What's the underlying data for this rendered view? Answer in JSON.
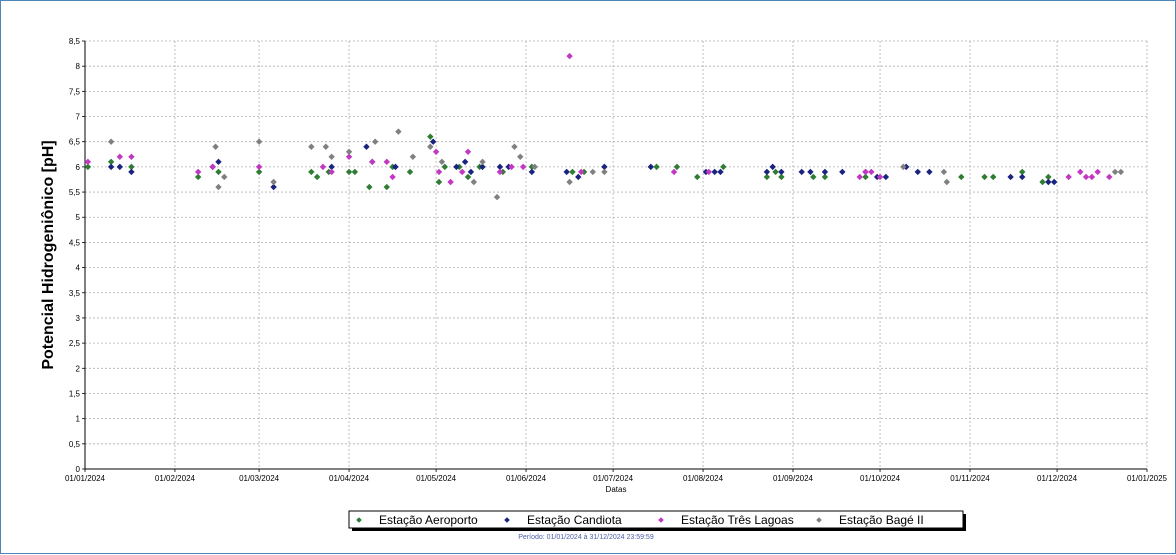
{
  "chart_data": {
    "type": "scatter",
    "ylabel": "Potencial Hidrogeniônico [pH]",
    "xlabel": "Datas",
    "period": "Período: 01/01/2024 à 31/12/2024 23:59:59",
    "ylim": [
      0,
      8.5
    ],
    "yticks": [
      "0",
      "0,5",
      "1",
      "1,5",
      "2",
      "2,5",
      "3",
      "3,5",
      "4",
      "4,5",
      "5",
      "5,5",
      "6",
      "6,5",
      "7",
      "7,5",
      "8",
      "8,5"
    ],
    "xlim": [
      "2024-01-01",
      "2025-01-01"
    ],
    "xticks": [
      "01/01/2024",
      "01/02/2024",
      "01/03/2024",
      "01/04/2024",
      "01/05/2024",
      "01/06/2024",
      "01/07/2024",
      "01/08/2024",
      "01/09/2024",
      "01/10/2024",
      "01/11/2024",
      "01/12/2024",
      "01/01/2025"
    ],
    "grid": true,
    "legend_position": "bottom",
    "series": [
      {
        "name": "Estação Aeroporto",
        "color": "#2e7d32",
        "points": [
          [
            "2024-01-02",
            6.0
          ],
          [
            "2024-01-10",
            6.1
          ],
          [
            "2024-01-17",
            6.0
          ],
          [
            "2024-02-09",
            5.8
          ],
          [
            "2024-02-16",
            5.9
          ],
          [
            "2024-03-01",
            5.9
          ],
          [
            "2024-03-19",
            5.9
          ],
          [
            "2024-03-21",
            5.8
          ],
          [
            "2024-03-25",
            5.9
          ],
          [
            "2024-04-01",
            5.9
          ],
          [
            "2024-04-03",
            5.9
          ],
          [
            "2024-04-08",
            5.6
          ],
          [
            "2024-04-14",
            5.6
          ],
          [
            "2024-04-16",
            6.0
          ],
          [
            "2024-04-22",
            5.9
          ],
          [
            "2024-04-29",
            6.6
          ],
          [
            "2024-05-02",
            5.7
          ],
          [
            "2024-05-04",
            6.0
          ],
          [
            "2024-05-09",
            6.0
          ],
          [
            "2024-05-12",
            5.8
          ],
          [
            "2024-05-16",
            6.0
          ],
          [
            "2024-05-24",
            5.9
          ],
          [
            "2024-06-03",
            6.0
          ],
          [
            "2024-06-17",
            5.9
          ],
          [
            "2024-06-21",
            5.9
          ],
          [
            "2024-07-16",
            6.0
          ],
          [
            "2024-07-23",
            6.0
          ],
          [
            "2024-07-30",
            5.8
          ],
          [
            "2024-08-08",
            6.0
          ],
          [
            "2024-08-23",
            5.8
          ],
          [
            "2024-08-26",
            5.9
          ],
          [
            "2024-08-28",
            5.8
          ],
          [
            "2024-09-08",
            5.8
          ],
          [
            "2024-09-12",
            5.8
          ],
          [
            "2024-09-26",
            5.8
          ],
          [
            "2024-10-29",
            5.8
          ],
          [
            "2024-11-06",
            5.8
          ],
          [
            "2024-11-09",
            5.8
          ],
          [
            "2024-11-19",
            5.9
          ],
          [
            "2024-11-26",
            5.7
          ],
          [
            "2024-11-28",
            5.8
          ]
        ]
      },
      {
        "name": "Estação Candiota",
        "color": "#1a237e",
        "points": [
          [
            "2024-01-10",
            6.0
          ],
          [
            "2024-01-13",
            6.0
          ],
          [
            "2024-01-17",
            5.9
          ],
          [
            "2024-02-14",
            6.0
          ],
          [
            "2024-02-16",
            6.1
          ],
          [
            "2024-03-06",
            5.6
          ],
          [
            "2024-03-26",
            6.0
          ],
          [
            "2024-04-07",
            6.4
          ],
          [
            "2024-04-09",
            6.1
          ],
          [
            "2024-04-17",
            6.0
          ],
          [
            "2024-04-30",
            6.5
          ],
          [
            "2024-05-08",
            6.0
          ],
          [
            "2024-05-11",
            6.1
          ],
          [
            "2024-05-13",
            5.9
          ],
          [
            "2024-05-17",
            6.0
          ],
          [
            "2024-05-23",
            6.0
          ],
          [
            "2024-05-26",
            6.0
          ],
          [
            "2024-06-03",
            5.9
          ],
          [
            "2024-06-15",
            5.9
          ],
          [
            "2024-06-19",
            5.8
          ],
          [
            "2024-06-28",
            6.0
          ],
          [
            "2024-07-14",
            6.0
          ],
          [
            "2024-08-02",
            5.9
          ],
          [
            "2024-08-05",
            5.9
          ],
          [
            "2024-08-07",
            5.9
          ],
          [
            "2024-08-23",
            5.9
          ],
          [
            "2024-08-25",
            6.0
          ],
          [
            "2024-08-28",
            5.9
          ],
          [
            "2024-09-04",
            5.9
          ],
          [
            "2024-09-07",
            5.9
          ],
          [
            "2024-09-12",
            5.9
          ],
          [
            "2024-09-18",
            5.9
          ],
          [
            "2024-09-26",
            5.9
          ],
          [
            "2024-09-30",
            5.8
          ],
          [
            "2024-10-03",
            5.8
          ],
          [
            "2024-10-10",
            6.0
          ],
          [
            "2024-10-14",
            5.9
          ],
          [
            "2024-10-18",
            5.9
          ],
          [
            "2024-11-15",
            5.8
          ],
          [
            "2024-11-19",
            5.8
          ],
          [
            "2024-11-28",
            5.7
          ],
          [
            "2024-11-30",
            5.7
          ]
        ]
      },
      {
        "name": "Estação Três Lagoas",
        "color": "#c238c2",
        "points": [
          [
            "2024-01-02",
            6.1
          ],
          [
            "2024-01-13",
            6.2
          ],
          [
            "2024-01-17",
            6.2
          ],
          [
            "2024-02-09",
            5.9
          ],
          [
            "2024-02-14",
            6.0
          ],
          [
            "2024-03-01",
            6.0
          ],
          [
            "2024-03-23",
            6.0
          ],
          [
            "2024-03-26",
            5.9
          ],
          [
            "2024-04-01",
            6.2
          ],
          [
            "2024-04-09",
            6.1
          ],
          [
            "2024-04-14",
            6.1
          ],
          [
            "2024-04-16",
            5.8
          ],
          [
            "2024-05-01",
            6.3
          ],
          [
            "2024-05-02",
            5.9
          ],
          [
            "2024-05-06",
            5.7
          ],
          [
            "2024-05-10",
            5.9
          ],
          [
            "2024-05-12",
            6.3
          ],
          [
            "2024-05-23",
            5.9
          ],
          [
            "2024-05-27",
            6.0
          ],
          [
            "2024-05-31",
            6.0
          ],
          [
            "2024-06-16",
            8.2
          ],
          [
            "2024-06-20",
            5.9
          ],
          [
            "2024-07-22",
            5.9
          ],
          [
            "2024-08-03",
            5.9
          ],
          [
            "2024-09-24",
            5.8
          ],
          [
            "2024-09-26",
            5.9
          ],
          [
            "2024-09-28",
            5.9
          ],
          [
            "2024-10-01",
            5.8
          ],
          [
            "2024-12-05",
            5.8
          ],
          [
            "2024-12-09",
            5.9
          ],
          [
            "2024-12-11",
            5.8
          ],
          [
            "2024-12-13",
            5.8
          ],
          [
            "2024-12-15",
            5.9
          ],
          [
            "2024-12-19",
            5.8
          ]
        ]
      },
      {
        "name": "Estação Bagé II",
        "color": "#808080",
        "points": [
          [
            "2024-01-10",
            6.5
          ],
          [
            "2024-02-15",
            6.4
          ],
          [
            "2024-02-16",
            5.6
          ],
          [
            "2024-02-18",
            5.8
          ],
          [
            "2024-03-01",
            6.5
          ],
          [
            "2024-03-06",
            5.7
          ],
          [
            "2024-03-19",
            6.4
          ],
          [
            "2024-03-24",
            6.4
          ],
          [
            "2024-03-26",
            6.2
          ],
          [
            "2024-04-01",
            6.3
          ],
          [
            "2024-04-10",
            6.5
          ],
          [
            "2024-04-18",
            6.7
          ],
          [
            "2024-04-23",
            6.2
          ],
          [
            "2024-04-29",
            6.4
          ],
          [
            "2024-05-03",
            6.1
          ],
          [
            "2024-05-14",
            5.7
          ],
          [
            "2024-05-17",
            6.1
          ],
          [
            "2024-05-22",
            5.4
          ],
          [
            "2024-05-28",
            6.4
          ],
          [
            "2024-05-30",
            6.2
          ],
          [
            "2024-06-04",
            6.0
          ],
          [
            "2024-06-16",
            5.7
          ],
          [
            "2024-06-24",
            5.9
          ],
          [
            "2024-06-28",
            5.9
          ],
          [
            "2024-10-09",
            6.0
          ],
          [
            "2024-10-24",
            5.7
          ],
          [
            "2024-10-23",
            5.9
          ],
          [
            "2024-12-21",
            5.9
          ],
          [
            "2024-12-23",
            5.9
          ]
        ]
      }
    ]
  }
}
